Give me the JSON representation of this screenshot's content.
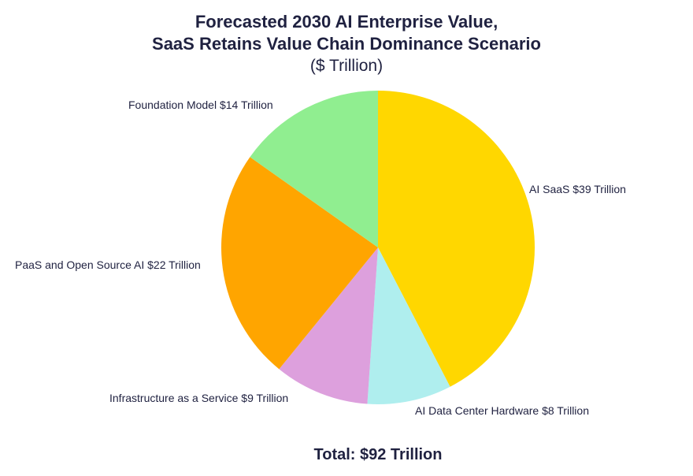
{
  "chart_data": {
    "type": "pie",
    "title_line1": "Forecasted 2030 AI Enterprise Value,",
    "title_line2": "SaaS Retains Value Chain Dominance Scenario",
    "subtitle": "($ Trillion)",
    "unit": "$ Trillion",
    "slices": [
      {
        "name": "AI SaaS",
        "value": 39,
        "label": "AI SaaS $39 Trillion",
        "color": "#FFD700"
      },
      {
        "name": "AI Data Center Hardware",
        "value": 8,
        "label": "AI Data Center Hardware $8 Trillion",
        "color": "#AFEEEE"
      },
      {
        "name": "Infrastructure as a Service",
        "value": 9,
        "label": "Infrastructure as a Service $9 Trillion",
        "color": "#DDA0DD"
      },
      {
        "name": "PaaS and Open Source AI",
        "value": 22,
        "label": "PaaS and Open Source AI $22 Trillion",
        "color": "#FFA500"
      },
      {
        "name": "Foundation Model",
        "value": 14,
        "label": "Foundation Model $14 Trillion",
        "color": "#90EE90"
      }
    ],
    "start": "top",
    "direction": "clockwise",
    "total_label": "Total: $92 Trillion"
  }
}
